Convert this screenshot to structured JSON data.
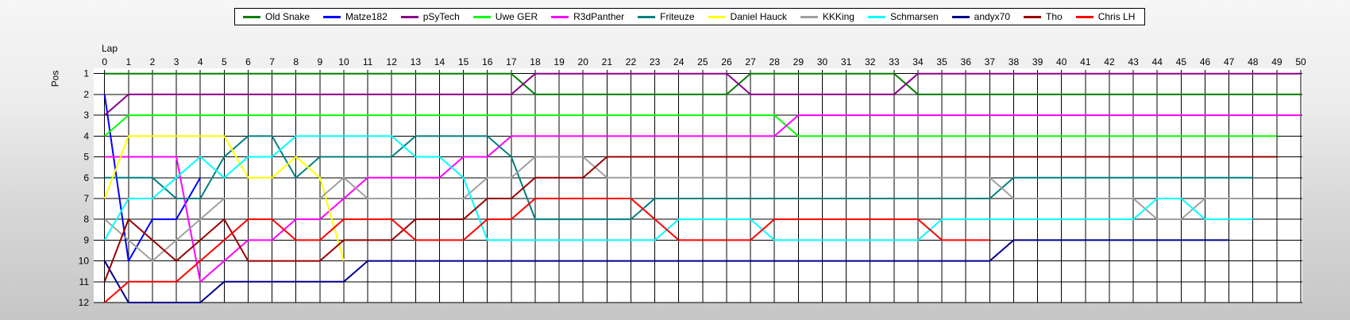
{
  "chart_data": {
    "type": "line",
    "title": "",
    "xlabel": "Lap",
    "ylabel": "Pos",
    "xlim": [
      0,
      50
    ],
    "x_step": 1,
    "ylim": [
      1,
      12
    ],
    "y_step": 1,
    "y_inverted": true,
    "grid": true,
    "legend_position": "top-center",
    "grid_color": "#000000",
    "plot_background": "#ffffff",
    "series": [
      {
        "name": "Old Snake",
        "color": "#008000",
        "start_lap": 0,
        "positions": [
          1,
          1,
          1,
          1,
          1,
          1,
          1,
          1,
          1,
          1,
          1,
          1,
          1,
          1,
          1,
          1,
          1,
          1,
          2,
          2,
          2,
          2,
          2,
          2,
          2,
          2,
          2,
          1,
          1,
          1,
          1,
          1,
          1,
          1,
          2,
          2,
          2,
          2,
          2,
          2,
          2,
          2,
          2,
          2,
          2,
          2,
          2,
          2,
          2,
          2,
          2
        ]
      },
      {
        "name": "Matze182",
        "color": "#0000FF",
        "start_lap": 0,
        "positions": [
          2,
          10,
          8,
          8,
          6
        ]
      },
      {
        "name": "pSyTech",
        "color": "#8B008B",
        "start_lap": 0,
        "positions": [
          3,
          2,
          2,
          2,
          2,
          2,
          2,
          2,
          2,
          2,
          2,
          2,
          2,
          2,
          2,
          2,
          2,
          2,
          1,
          1,
          1,
          1,
          1,
          1,
          1,
          1,
          1,
          2,
          2,
          2,
          2,
          2,
          2,
          2,
          1,
          1,
          1,
          1,
          1,
          1,
          1,
          1,
          1,
          1,
          1,
          1,
          1,
          1,
          1,
          1,
          1
        ]
      },
      {
        "name": "Uwe GER",
        "color": "#00FF00",
        "start_lap": 0,
        "positions": [
          4,
          3,
          3,
          3,
          3,
          3,
          3,
          3,
          3,
          3,
          3,
          3,
          3,
          3,
          3,
          3,
          3,
          3,
          3,
          3,
          3,
          3,
          3,
          3,
          3,
          3,
          3,
          3,
          3,
          4,
          4,
          4,
          4,
          4,
          4,
          4,
          4,
          4,
          4,
          4,
          4,
          4,
          4,
          4,
          4,
          4,
          4,
          4,
          4,
          4
        ]
      },
      {
        "name": "R3dPanther",
        "color": "#FF00FF",
        "start_lap": 0,
        "positions": [
          5,
          5,
          5,
          5,
          11,
          10,
          9,
          9,
          8,
          8,
          7,
          6,
          6,
          6,
          6,
          5,
          5,
          4,
          4,
          4,
          4,
          4,
          4,
          4,
          4,
          4,
          4,
          4,
          4,
          3,
          3,
          3,
          3,
          3,
          3,
          3,
          3,
          3,
          3,
          3,
          3,
          3,
          3,
          3,
          3,
          3,
          3,
          3,
          3,
          3,
          3
        ]
      },
      {
        "name": "Friteuze",
        "color": "#008080",
        "start_lap": 0,
        "positions": [
          6,
          6,
          6,
          7,
          7,
          5,
          4,
          4,
          6,
          5,
          5,
          5,
          5,
          4,
          4,
          4,
          4,
          5,
          8,
          8,
          8,
          8,
          8,
          7,
          7,
          7,
          7,
          7,
          7,
          7,
          7,
          7,
          7,
          7,
          7,
          7,
          7,
          7,
          6,
          6,
          6,
          6,
          6,
          6,
          6,
          6,
          6,
          6,
          6
        ]
      },
      {
        "name": "Daniel Hauck",
        "color": "#FFFF00",
        "start_lap": 0,
        "positions": [
          7,
          4,
          4,
          4,
          4,
          4,
          6,
          6,
          5,
          6,
          10
        ]
      },
      {
        "name": "KKKing",
        "color": "#A0A0A0",
        "start_lap": 0,
        "positions": [
          8,
          9,
          10,
          9,
          8,
          7,
          7,
          7,
          7,
          7,
          6,
          7,
          7,
          7,
          7,
          7,
          6,
          6,
          5,
          5,
          5,
          6,
          6,
          6,
          6,
          6,
          6,
          6,
          6,
          6,
          6,
          6,
          6,
          6,
          6,
          6,
          6,
          6,
          7,
          7,
          7,
          7,
          7,
          7,
          8,
          8,
          7,
          7,
          7
        ]
      },
      {
        "name": "Schmarsen",
        "color": "#00FFFF",
        "start_lap": 0,
        "positions": [
          9,
          7,
          7,
          6,
          5,
          6,
          5,
          5,
          4,
          4,
          4,
          4,
          4,
          5,
          5,
          6,
          9,
          9,
          9,
          9,
          9,
          9,
          9,
          9,
          8,
          8,
          8,
          8,
          9,
          9,
          9,
          9,
          9,
          9,
          9,
          8,
          8,
          8,
          8,
          8,
          8,
          8,
          8,
          8,
          7,
          7,
          8,
          8,
          8
        ]
      },
      {
        "name": "andyx70",
        "color": "#00008B",
        "start_lap": 0,
        "positions": [
          10,
          12,
          12,
          12,
          12,
          11,
          11,
          11,
          11,
          11,
          11,
          10,
          10,
          10,
          10,
          10,
          10,
          10,
          10,
          10,
          10,
          10,
          10,
          10,
          10,
          10,
          10,
          10,
          10,
          10,
          10,
          10,
          10,
          10,
          10,
          10,
          10,
          10,
          9,
          9,
          9,
          9,
          9,
          9,
          9,
          9,
          9,
          9
        ]
      },
      {
        "name": "Tho",
        "color": "#990000",
        "start_lap": 0,
        "positions": [
          11,
          8,
          9,
          10,
          9,
          8,
          10,
          10,
          10,
          10,
          9,
          9,
          9,
          8,
          8,
          8,
          7,
          7,
          6,
          6,
          6,
          5,
          5,
          5,
          5,
          5,
          5,
          5,
          5,
          5,
          5,
          5,
          5,
          5,
          5,
          5,
          5,
          5,
          5,
          5,
          5,
          5,
          5,
          5,
          5,
          5,
          5,
          5,
          5,
          5
        ]
      },
      {
        "name": "Chris LH",
        "color": "#FF0000",
        "start_lap": 0,
        "positions": [
          12,
          11,
          11,
          11,
          10,
          9,
          8,
          8,
          9,
          9,
          8,
          8,
          8,
          9,
          9,
          9,
          8,
          8,
          7,
          7,
          7,
          7,
          7,
          8,
          9,
          9,
          9,
          9,
          8,
          8,
          8,
          8,
          8,
          8,
          8,
          9,
          9,
          9
        ]
      }
    ]
  }
}
